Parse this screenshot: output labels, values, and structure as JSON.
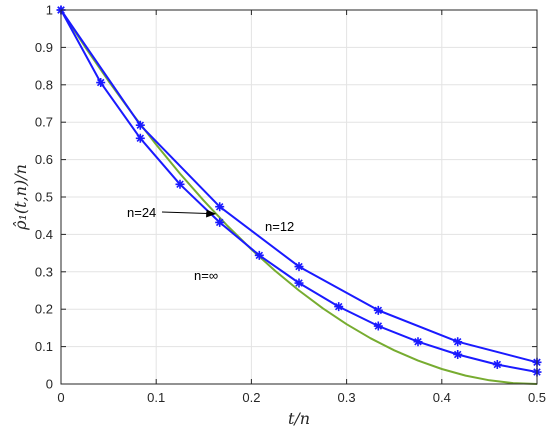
{
  "chart_data": {
    "type": "line",
    "xlabel": "t/n",
    "ylabel": "ρ̂₁(t,n)/n",
    "xlim": [
      0,
      0.5
    ],
    "ylim": [
      0,
      1
    ],
    "xticks": [
      "0",
      "0.1",
      "0.2",
      "0.3",
      "0.4",
      "0.5"
    ],
    "yticks": [
      "0",
      "0.1",
      "0.2",
      "0.3",
      "0.4",
      "0.5",
      "0.6",
      "0.7",
      "0.8",
      "0.9",
      "1"
    ],
    "grid": true,
    "series": [
      {
        "name": "n=12",
        "color": "#1a1aff",
        "marker": "asterisk",
        "x": [
          0,
          0.0833,
          0.1667,
          0.25,
          0.3333,
          0.4167,
          0.5
        ],
        "y": [
          1,
          0.692,
          0.474,
          0.314,
          0.197,
          0.113,
          0.058
        ]
      },
      {
        "name": "n=24",
        "color": "#1a1aff",
        "marker": "asterisk",
        "x": [
          0,
          0.0417,
          0.0833,
          0.125,
          0.1667,
          0.2083,
          0.25,
          0.2917,
          0.3333,
          0.375,
          0.4167,
          0.4583,
          0.5
        ],
        "y": [
          1,
          0.806,
          0.657,
          0.534,
          0.432,
          0.344,
          0.27,
          0.207,
          0.155,
          0.113,
          0.079,
          0.052,
          0.032
        ]
      },
      {
        "name": "n=∞",
        "color": "#77ac30",
        "marker": "none",
        "x": [
          0,
          0.025,
          0.05,
          0.075,
          0.1,
          0.125,
          0.15,
          0.175,
          0.2,
          0.225,
          0.25,
          0.275,
          0.3,
          0.325,
          0.35,
          0.375,
          0.4,
          0.425,
          0.45,
          0.475,
          0.5
        ],
        "y": [
          1,
          0.9025,
          0.81,
          0.7225,
          0.64,
          0.5625,
          0.49,
          0.4225,
          0.36,
          0.3025,
          0.25,
          0.2025,
          0.16,
          0.1225,
          0.09,
          0.0625,
          0.04,
          0.0225,
          0.01,
          0.0025,
          0
        ]
      }
    ],
    "annotations": [
      {
        "text": "n=24",
        "arrow": true,
        "arrow_to": [
          0.162,
          0.455
        ]
      },
      {
        "text": "n=12",
        "arrow": false
      },
      {
        "text": "n=∞",
        "arrow": false
      }
    ]
  }
}
